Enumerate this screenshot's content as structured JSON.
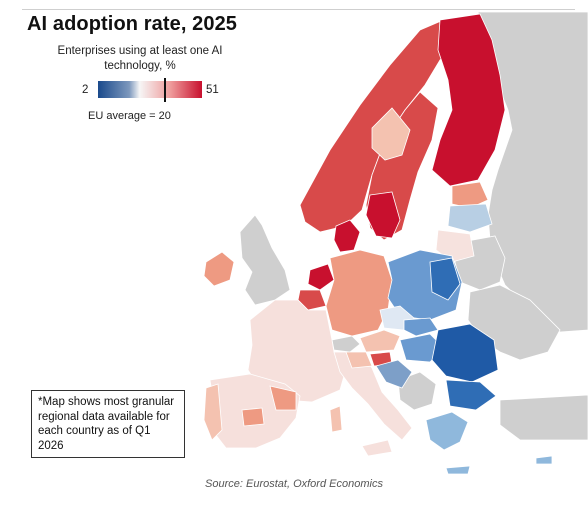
{
  "title": "AI adoption rate, 2025",
  "legend": {
    "caption": "Enterprises using at least one AI technology, %",
    "min": "2",
    "max": "51",
    "eu_average_label": "EU average = 20",
    "colors": {
      "low": "#1a4a8c",
      "mid_low": "#7d98bd",
      "neutral": "#f6f6f6",
      "mid_high": "#ee9a9a",
      "high": "#c8102e",
      "no_data": "#cfcfcf"
    }
  },
  "note": "*Map shows most granular regional data available for each country as of Q1 2026",
  "source": "Source: Eurostat, Oxford Economics",
  "map": {
    "type": "choropleth",
    "scale_min": 2,
    "scale_max": 51,
    "eu_average": 20
  }
}
